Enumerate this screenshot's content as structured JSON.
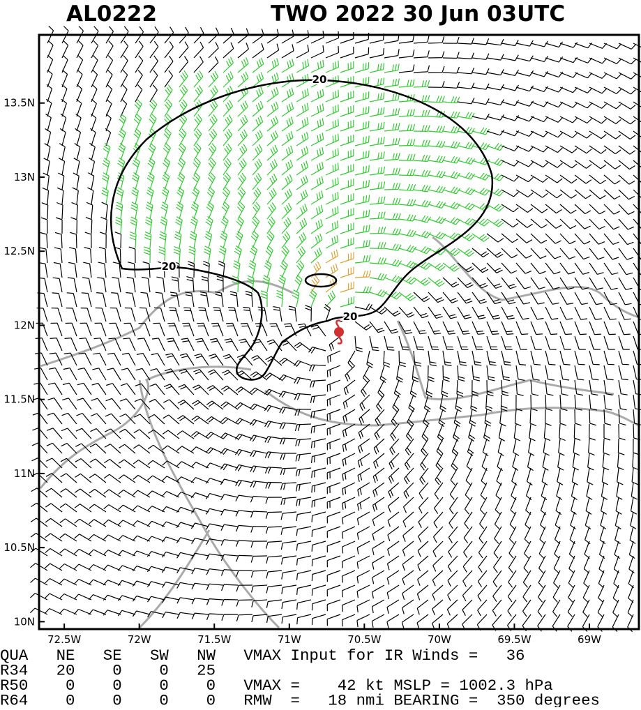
{
  "header": {
    "storm_id": "AL0222",
    "title": "TWO 2022 30 Jun 03UTC"
  },
  "map": {
    "xlim": [
      -72.668,
      -68.67
    ],
    "ylim": [
      9.95,
      13.96
    ],
    "xticks": [
      {
        "value": -72.5,
        "label": "72.5W"
      },
      {
        "value": -72,
        "label": "72W"
      },
      {
        "value": -71.5,
        "label": "71.5W"
      },
      {
        "value": -71,
        "label": "71W"
      },
      {
        "value": -70.5,
        "label": "70.5W"
      },
      {
        "value": -70,
        "label": "70W"
      },
      {
        "value": -69.5,
        "label": "69.5W"
      },
      {
        "value": -69,
        "label": "69W"
      }
    ],
    "yticks": [
      {
        "value": 10,
        "label": "10N"
      },
      {
        "value": 10.5,
        "label": "10.5N"
      },
      {
        "value": 11,
        "label": "11N"
      },
      {
        "value": 11.5,
        "label": "11.5N"
      },
      {
        "value": 12,
        "label": "12N"
      },
      {
        "value": 12.5,
        "label": "12.5N"
      },
      {
        "value": 13,
        "label": "13N"
      },
      {
        "value": 13.5,
        "label": "13.5N"
      }
    ],
    "contour_labels": [
      "20",
      "20",
      "20"
    ]
  },
  "footer": {
    "rows": [
      "QUA   NE   SE   SW   NW   VMAX Input for IR Winds =   36",
      "R34   20    0    0   25",
      "R50    0    0    0    0   VMAX =    42 kt MSLP = 1002.3 hPa",
      "R64    0    0    0    0   RMW  =   18 nmi BEARING =  350 degrees"
    ]
  }
}
